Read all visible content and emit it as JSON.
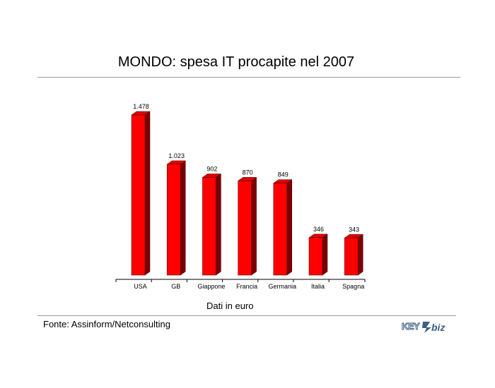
{
  "title": "MONDO: spesa IT procapite nel 2007",
  "caption": "Dati in euro",
  "source": "Fonte: Assinform/Netconsulting",
  "logo_text": "KEY4biz",
  "colors": {
    "bar_front": "#ff0000",
    "bar_top": "#e00000",
    "bar_side": "#7a0000",
    "rule": "#9a9a9a"
  },
  "chart_data": {
    "type": "bar",
    "title": "MONDO: spesa IT procapite nel 2007",
    "xlabel": "Dati in euro",
    "ylabel": "",
    "categories": [
      "USA",
      "GB",
      "Giappone",
      "Francia",
      "Germania",
      "Italia",
      "Spagna"
    ],
    "values": [
      1478,
      1023,
      902,
      870,
      849,
      346,
      343
    ],
    "value_labels": [
      "1.478",
      "1.023",
      "902",
      "870",
      "849",
      "346",
      "343"
    ],
    "ylim": [
      0,
      1478
    ],
    "grid": false,
    "legend": "none"
  }
}
